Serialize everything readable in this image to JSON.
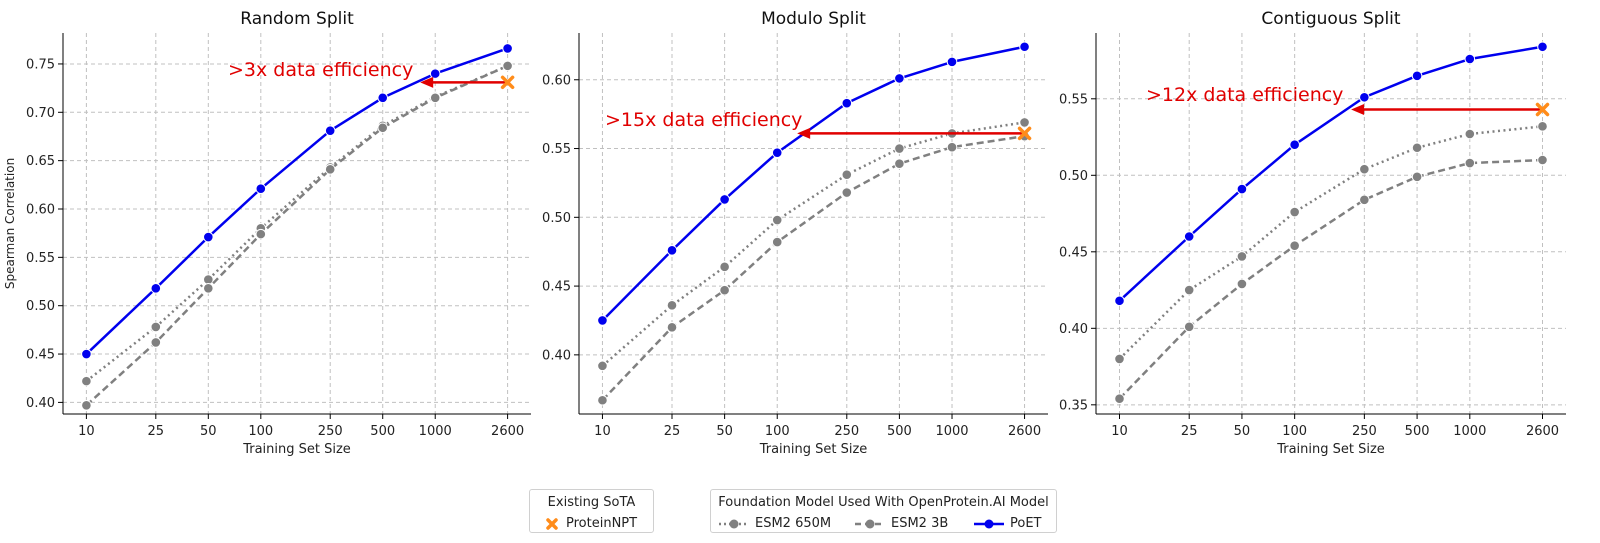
{
  "chart_data": [
    {
      "type": "line",
      "title": "Random Split",
      "xlabel": "Training Set Size",
      "ylabel": "Spearman Correlation",
      "xscale": "log",
      "x": [
        10,
        25,
        50,
        100,
        250,
        500,
        1000,
        2600
      ],
      "xticks": [
        "10",
        "25",
        "50",
        "100",
        "250",
        "500",
        "1000",
        "2600"
      ],
      "yticks": [
        "0.40",
        "0.45",
        "0.50",
        "0.55",
        "0.60",
        "0.65",
        "0.70",
        "0.75"
      ],
      "ylim": [
        0.388,
        0.782
      ],
      "grid": true,
      "series": [
        {
          "name": "ESM2 650M",
          "style": "dotted",
          "color": "#808080",
          "values": [
            0.422,
            0.478,
            0.527,
            0.58,
            0.643,
            0.686,
            0.716,
            0.748
          ]
        },
        {
          "name": "ESM2 3B",
          "style": "dashed",
          "color": "#808080",
          "values": [
            0.397,
            0.462,
            0.518,
            0.574,
            0.641,
            0.684,
            0.715,
            0.748
          ]
        },
        {
          "name": "PoET",
          "style": "solid",
          "color": "#0000ee",
          "values": [
            0.45,
            0.518,
            0.571,
            0.621,
            0.681,
            0.715,
            0.74,
            0.766
          ]
        }
      ],
      "sota": {
        "name": "ProteinNPT",
        "x": 2600,
        "y": 0.731
      },
      "annotation": {
        "text": ">3x data efficiency",
        "x_from": 2600,
        "x_to": 820,
        "y": 0.731
      }
    },
    {
      "type": "line",
      "title": "Modulo Split",
      "xlabel": "Training Set Size",
      "ylabel": "",
      "xscale": "log",
      "x": [
        10,
        25,
        50,
        100,
        250,
        500,
        1000,
        2600
      ],
      "xticks": [
        "10",
        "25",
        "50",
        "100",
        "250",
        "500",
        "1000",
        "2600"
      ],
      "yticks": [
        "0.40",
        "0.45",
        "0.50",
        "0.55",
        "0.60"
      ],
      "ylim": [
        0.357,
        0.634
      ],
      "grid": true,
      "series": [
        {
          "name": "ESM2 650M",
          "style": "dotted",
          "color": "#808080",
          "values": [
            0.392,
            0.436,
            0.464,
            0.498,
            0.531,
            0.55,
            0.561,
            0.569
          ]
        },
        {
          "name": "ESM2 3B",
          "style": "dashed",
          "color": "#808080",
          "values": [
            0.367,
            0.42,
            0.447,
            0.482,
            0.518,
            0.539,
            0.551,
            0.559
          ]
        },
        {
          "name": "PoET",
          "style": "solid",
          "color": "#0000ee",
          "values": [
            0.425,
            0.476,
            0.513,
            0.547,
            0.583,
            0.601,
            0.613,
            0.624
          ]
        }
      ],
      "sota": {
        "name": "ProteinNPT",
        "x": 2600,
        "y": 0.561
      },
      "annotation": {
        "text": ">15x data efficiency",
        "x_from": 2600,
        "x_to": 130,
        "y": 0.561
      }
    },
    {
      "type": "line",
      "title": "Contiguous Split",
      "xlabel": "Training Set Size",
      "ylabel": "",
      "xscale": "log",
      "x": [
        10,
        25,
        50,
        100,
        250,
        500,
        1000,
        2600
      ],
      "xticks": [
        "10",
        "25",
        "50",
        "100",
        "250",
        "500",
        "1000",
        "2600"
      ],
      "yticks": [
        "0.35",
        "0.40",
        "0.45",
        "0.50",
        "0.55"
      ],
      "ylim": [
        0.344,
        0.593
      ],
      "grid": true,
      "series": [
        {
          "name": "ESM2 650M",
          "style": "dotted",
          "color": "#808080",
          "values": [
            0.38,
            0.425,
            0.447,
            0.476,
            0.504,
            0.518,
            0.527,
            0.532
          ]
        },
        {
          "name": "ESM2 3B",
          "style": "dashed",
          "color": "#808080",
          "values": [
            0.354,
            0.401,
            0.429,
            0.454,
            0.484,
            0.499,
            0.508,
            0.51
          ]
        },
        {
          "name": "PoET",
          "style": "solid",
          "color": "#0000ee",
          "values": [
            0.418,
            0.46,
            0.491,
            0.52,
            0.551,
            0.565,
            0.576,
            0.584
          ]
        }
      ],
      "sota": {
        "name": "ProteinNPT",
        "x": 2600,
        "y": 0.543
      },
      "annotation": {
        "text": ">12x data efficiency",
        "x_from": 2600,
        "x_to": 210,
        "y": 0.543
      }
    }
  ],
  "legend": {
    "sota_title": "Existing SoTA",
    "sota_entry": "ProteinNPT",
    "foundation_title": "Foundation Model Used With OpenProtein.AI Model",
    "foundation_entries": [
      "ESM2 650M",
      "ESM2 3B",
      "PoET"
    ]
  },
  "colors": {
    "poet": "#0000ee",
    "esm": "#808080",
    "sota": "#ff8c1a",
    "arrow": "#e00000",
    "annotation_text": "#e00000",
    "grid": "#c0c0c0"
  }
}
